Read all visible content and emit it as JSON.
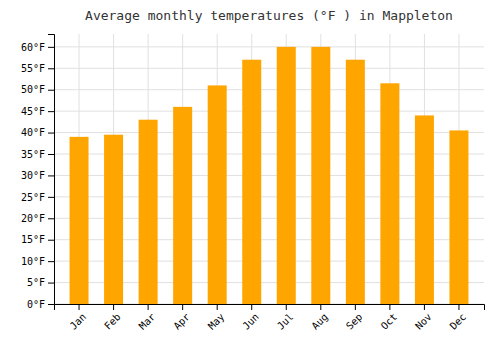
{
  "chart_data": {
    "type": "bar",
    "title": "Average monthly temperatures (°F ) in Mappleton",
    "categories": [
      "Jan",
      "Feb",
      "Mar",
      "Apr",
      "May",
      "Jun",
      "Jul",
      "Aug",
      "Sep",
      "Oct",
      "Nov",
      "Dec"
    ],
    "values": [
      39,
      39.5,
      43,
      46,
      51,
      57,
      60,
      60,
      57,
      51.5,
      44,
      40.5
    ],
    "color": "#FFA500",
    "ylim": [
      0,
      63
    ],
    "yticks": [
      {
        "value": 0,
        "label": "0°F"
      },
      {
        "value": 5,
        "label": "5°F"
      },
      {
        "value": 10,
        "label": "10°F"
      },
      {
        "value": 15,
        "label": "15°F"
      },
      {
        "value": 20,
        "label": "20°F"
      },
      {
        "value": 25,
        "label": "25°F"
      },
      {
        "value": 30,
        "label": "30°F"
      },
      {
        "value": 35,
        "label": "35°F"
      },
      {
        "value": 40,
        "label": "40°F"
      },
      {
        "value": 45,
        "label": "45°F"
      },
      {
        "value": 50,
        "label": "50°F"
      },
      {
        "value": 55,
        "label": "55°F"
      },
      {
        "value": 60,
        "label": "60°F"
      }
    ],
    "grid": true
  }
}
